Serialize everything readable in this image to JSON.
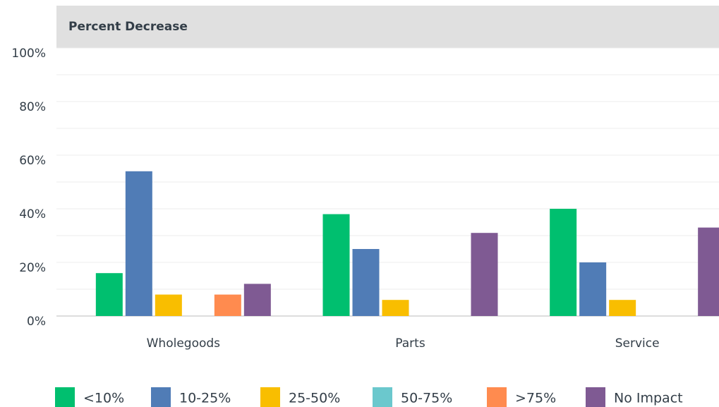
{
  "chart_data": {
    "type": "bar",
    "title": "Percent Decrease",
    "categories": [
      "Wholegoods",
      "Parts",
      "Service"
    ],
    "series": [
      {
        "name": "<10%",
        "color": "#00bf6f",
        "values": [
          16,
          38,
          40
        ]
      },
      {
        "name": "10-25%",
        "color": "#507cb6",
        "values": [
          54,
          25,
          20
        ]
      },
      {
        "name": "25-50%",
        "color": "#f9be00",
        "values": [
          8,
          6,
          6
        ]
      },
      {
        "name": "50-75%",
        "color": "#6bc8cd",
        "values": [
          0,
          0,
          0
        ]
      },
      {
        "name": ">75%",
        "color": "#ff8b4f",
        "values": [
          8,
          0,
          0
        ]
      },
      {
        "name": "No Impact",
        "color": "#7f5a93",
        "values": [
          12,
          31,
          33
        ]
      }
    ],
    "ylim": [
      0,
      100
    ],
    "yticks": [
      {
        "value": 0,
        "label": "0%"
      },
      {
        "value": 20,
        "label": "20%"
      },
      {
        "value": 40,
        "label": "40%"
      },
      {
        "value": 60,
        "label": "60%"
      },
      {
        "value": 80,
        "label": "80%"
      },
      {
        "value": 100,
        "label": "100%"
      }
    ],
    "minor_yticks": [
      10,
      30,
      50,
      70,
      90
    ],
    "grid": true,
    "legend": "bottom"
  }
}
